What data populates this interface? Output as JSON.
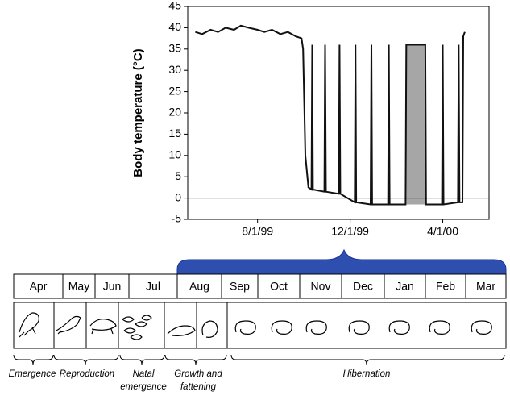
{
  "chart_data": {
    "type": "line",
    "y_label": "Body temperature (°C)",
    "xlim": [
      "5/1/99",
      "6/1/00"
    ],
    "xticks": [
      "8/1/99",
      "12/1/99",
      "4/1/00"
    ],
    "ylim": [
      -5,
      45
    ],
    "yticks": [
      -5,
      0,
      5,
      10,
      15,
      20,
      25,
      30,
      35,
      40,
      45
    ],
    "reference_line": 0,
    "shaded": {
      "x": [
        "2/13/00",
        "3/9/00"
      ],
      "y": [
        -1.5,
        36
      ],
      "color": "#a6a6a6"
    },
    "series": [
      {
        "color": "#111111",
        "x": [
          "5/11/99",
          "5/20/99",
          "5/31/99",
          "6/10/99",
          "6/20/99",
          "7/1/99",
          "7/10/99",
          "7/20/99",
          "8/1/99",
          "8/10/99",
          "8/20/99",
          "8/31/99",
          "9/10/99",
          "9/20/99",
          "9/28/99",
          "9/30/99",
          "10/3/99",
          "10/7/99",
          "10/11/99",
          "10/12/99",
          "10/13/99",
          "10/28/99",
          "10/29/99",
          "10/30/99",
          "11/16/99",
          "11/17/99",
          "11/18/99",
          "12/7/99",
          "12/8/99",
          "12/9/99",
          "12/28/99",
          "12/29/99",
          "12/30/99",
          "1/20/00",
          "1/21/00",
          "1/22/00",
          "2/12/00",
          "2/13/00",
          "3/9/00",
          "3/10/00",
          "3/31/00",
          "4/1/00",
          "4/2/00",
          "4/21/00",
          "4/22/00",
          "4/23/00",
          "4/27/00",
          "4/28/00",
          "4/30/00"
        ],
        "values": [
          39,
          38.5,
          39.5,
          39,
          40,
          39.5,
          40.5,
          40,
          39.5,
          39,
          39.5,
          38.5,
          39,
          38,
          37.5,
          35,
          10,
          2.5,
          2,
          36,
          2,
          1.5,
          36,
          1.5,
          1,
          36,
          1,
          -1,
          36,
          -1,
          -1.5,
          36,
          -1.5,
          -1.5,
          36,
          -1.5,
          -1.5,
          36,
          36,
          -1.5,
          -1.5,
          36,
          -1.5,
          -1,
          36,
          -1,
          -1,
          38,
          39
        ]
      }
    ]
  },
  "diagram": {
    "months": [
      "Apr",
      "May",
      "Jun",
      "Jul",
      "Aug",
      "Sep",
      "Oct",
      "Nov",
      "Dec",
      "Jan",
      "Feb",
      "Mar"
    ],
    "phases": [
      [
        "Emergence"
      ],
      [
        "Reproduction"
      ],
      [
        "Natal",
        "emergence"
      ],
      [
        "Growth and",
        "fattening"
      ],
      [
        "Hibernation"
      ]
    ]
  }
}
